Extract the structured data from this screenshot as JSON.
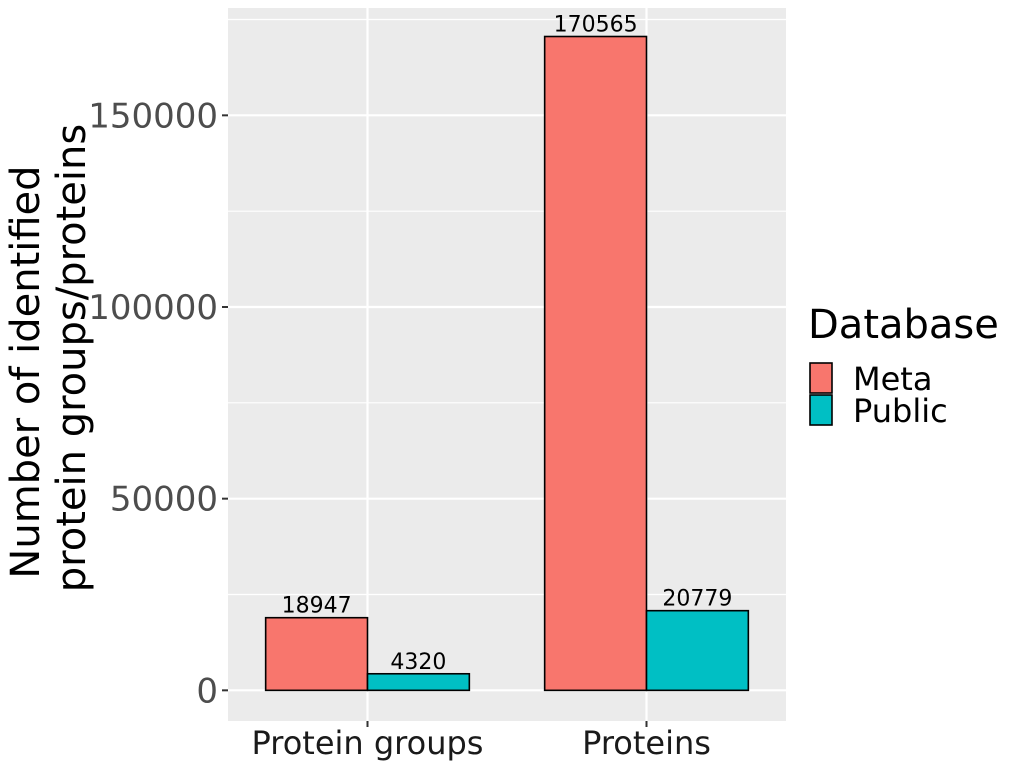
{
  "chart_data": {
    "type": "bar",
    "categories": [
      "Protein groups",
      "Proteins"
    ],
    "series": [
      {
        "name": "Meta",
        "values": [
          18947,
          170565
        ],
        "color": "#F8766D"
      },
      {
        "name": "Public",
        "values": [
          4320,
          20779
        ],
        "color": "#00BFC4"
      }
    ],
    "data_labels": [
      [
        "18947",
        "4320"
      ],
      [
        "170565",
        "20779"
      ]
    ],
    "ylabel_lines": [
      "Number of identified",
      "protein groups/proteins"
    ],
    "xlabel": "",
    "yticks": [
      0,
      50000,
      100000,
      150000
    ],
    "ytick_labels": [
      "0",
      "50000",
      "100000",
      "150000"
    ],
    "ylim": [
      -8000,
      178000
    ],
    "legend_title": "Database",
    "legend_position": "right",
    "grid": true,
    "panel_background": "#EBEBEB"
  }
}
